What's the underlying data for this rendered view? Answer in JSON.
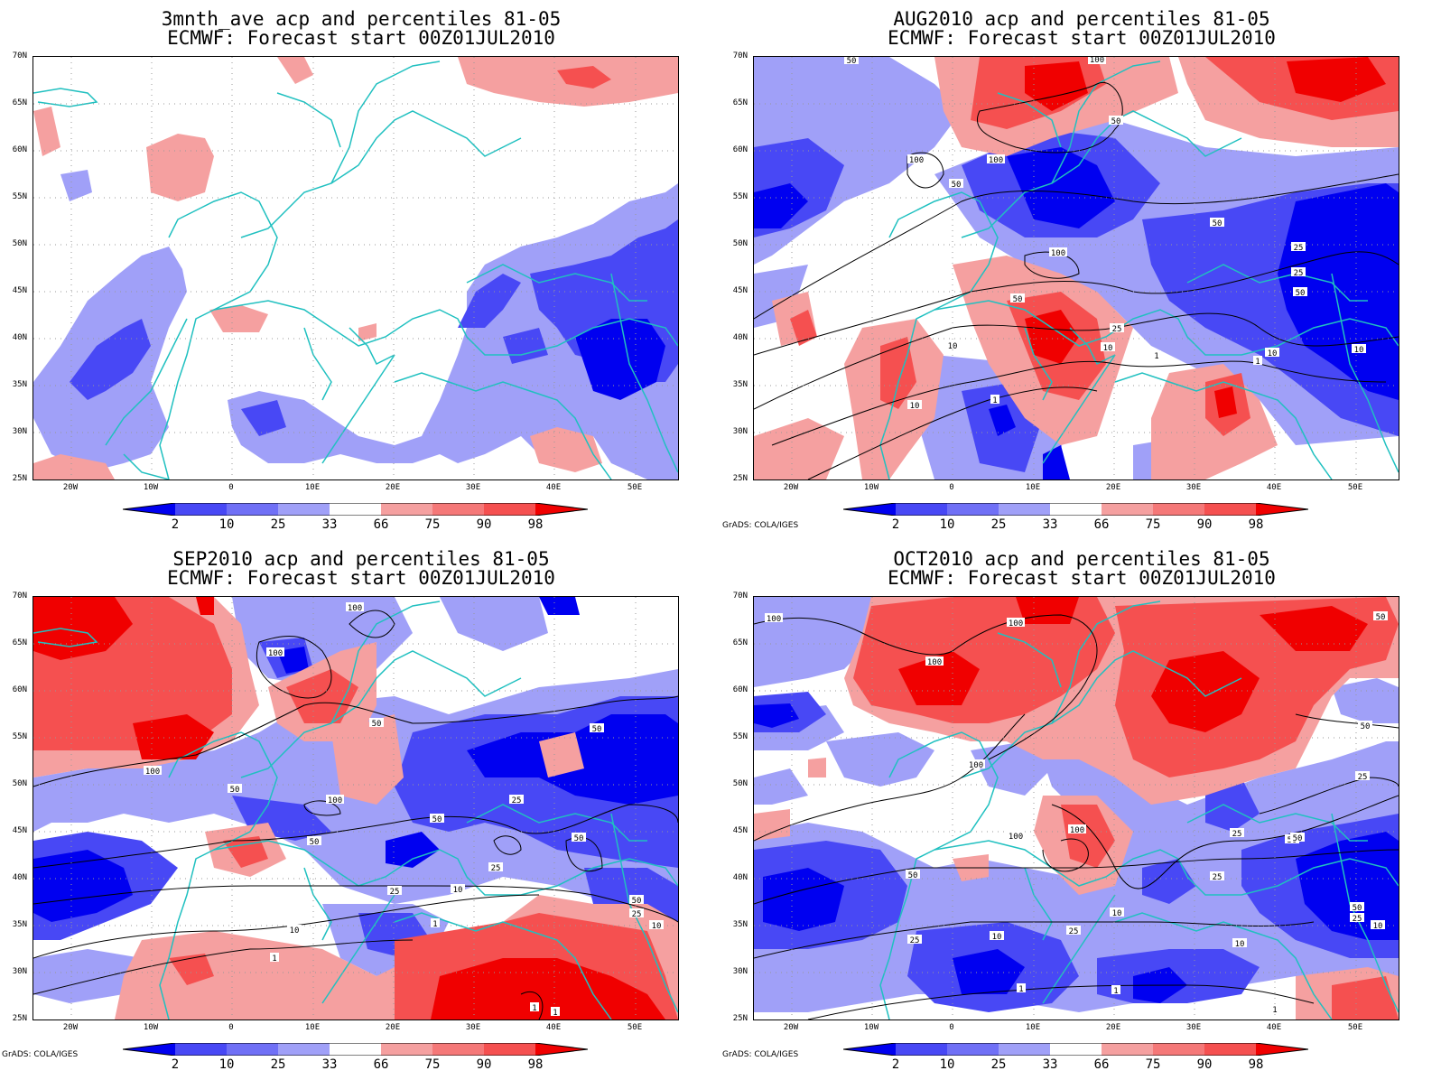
{
  "colors": {
    "blue_dark": "#0000f0",
    "blue_mid": "#4848f5",
    "blue_light": "#a0a0f8",
    "red_light": "#f5a0a0",
    "red_mid": "#f55050",
    "red_dark": "#f00000",
    "coast": "#20c0c0",
    "contour": "#000000"
  },
  "colorbar_labels": [
    "2",
    "10",
    "25",
    "33",
    "66",
    "75",
    "90",
    "98"
  ],
  "lat_labels": [
    "70N",
    "65N",
    "60N",
    "55N",
    "50N",
    "45N",
    "40N",
    "35N",
    "30N",
    "25N"
  ],
  "lon_labels": [
    "20W",
    "10W",
    "0",
    "10E",
    "20E",
    "30E",
    "40E",
    "50E"
  ],
  "panels": [
    {
      "title_line1": "3mnth_ave acp and percentiles 81-05",
      "title_line2": "ECMWF: Forecast start 00Z01JUL2010",
      "credit": "",
      "contour_labels": []
    },
    {
      "title_line1": "AUG2010 acp and percentiles 81-05",
      "title_line2": "ECMWF: Forecast start 00Z01JUL2010",
      "credit": "GrADS: COLA/IGES",
      "contour_labels": [
        "50",
        "100",
        "50",
        "100",
        "100",
        "50",
        "50",
        "100",
        "50",
        "25",
        "25",
        "50",
        "25",
        "10",
        "10",
        "1",
        "10",
        "10",
        "1",
        "1",
        "10"
      ]
    },
    {
      "title_line1": "SEP2010 acp and percentiles 81-05",
      "title_line2": "ECMWF: Forecast start 00Z01JUL2010",
      "credit": "GrADS: COLA/IGES",
      "contour_labels": [
        "100",
        "100",
        "100",
        "50",
        "50",
        "50",
        "100",
        "50",
        "50",
        "25",
        "25",
        "25",
        "10",
        "10",
        "1",
        "1",
        "50",
        "25",
        "10",
        "1",
        "1",
        "50"
      ]
    },
    {
      "title_line1": "OCT2010 acp and percentiles 81-05",
      "title_line2": "ECMWF: Forecast start 00Z01JUL2010",
      "credit": "GrADS: COLA/IGES",
      "contour_labels": [
        "100",
        "100",
        "100",
        "50",
        "50",
        "100",
        "25",
        "100",
        "100",
        "25",
        "50",
        "50",
        "25",
        "10",
        "25",
        "10",
        "25",
        "50",
        "25",
        "10",
        "10",
        "1",
        "1",
        "1",
        "50"
      ]
    }
  ]
}
